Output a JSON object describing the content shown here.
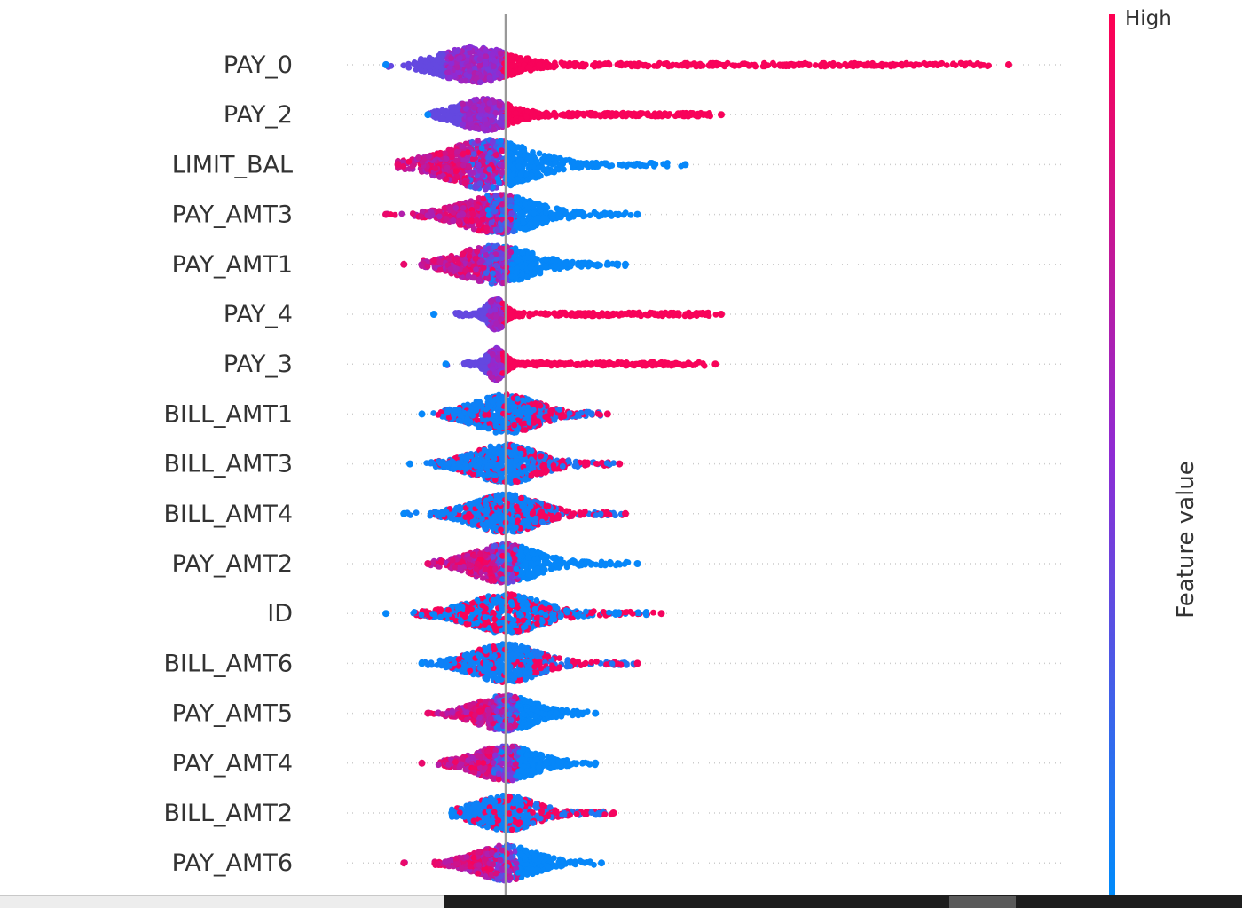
{
  "chart_data": {
    "type": "scatter",
    "subtype": "beeswarm",
    "title": "",
    "xlabel": "",
    "ylabel": "",
    "xlim": [
      -1.2,
      4.5
    ],
    "zero_line": 0,
    "features": [
      {
        "name": "PAY_0",
        "min": -1.0,
        "max": 4.2,
        "center": -0.25,
        "spread": 0.25,
        "width": 18,
        "count": 900,
        "color_mode": "pos_high"
      },
      {
        "name": "PAY_2",
        "min": -0.65,
        "max": 1.8,
        "center": -0.18,
        "spread": 0.18,
        "width": 16,
        "count": 700,
        "color_mode": "pos_high"
      },
      {
        "name": "LIMIT_BAL",
        "min": -0.9,
        "max": 1.5,
        "center": -0.15,
        "spread": 0.3,
        "width": 26,
        "count": 900,
        "color_mode": "neg_high"
      },
      {
        "name": "PAY_AMT3",
        "min": -1.0,
        "max": 1.1,
        "center": -0.05,
        "spread": 0.25,
        "width": 20,
        "count": 700,
        "color_mode": "neg_high"
      },
      {
        "name": "PAY_AMT1",
        "min": -0.85,
        "max": 1.0,
        "center": -0.08,
        "spread": 0.25,
        "width": 20,
        "count": 700,
        "color_mode": "neg_high"
      },
      {
        "name": "PAY_4",
        "min": -0.6,
        "max": 1.8,
        "center": -0.08,
        "spread": 0.06,
        "width": 16,
        "count": 600,
        "color_mode": "pos_high"
      },
      {
        "name": "PAY_3",
        "min": -0.5,
        "max": 1.75,
        "center": -0.08,
        "spread": 0.06,
        "width": 16,
        "count": 600,
        "color_mode": "pos_high"
      },
      {
        "name": "BILL_AMT1",
        "min": -0.7,
        "max": 0.85,
        "center": 0.0,
        "spread": 0.22,
        "width": 20,
        "count": 650,
        "color_mode": "pos_high_mild"
      },
      {
        "name": "BILL_AMT3",
        "min": -0.8,
        "max": 0.95,
        "center": 0.0,
        "spread": 0.22,
        "width": 20,
        "count": 650,
        "color_mode": "pos_high_mild"
      },
      {
        "name": "BILL_AMT4",
        "min": -0.85,
        "max": 1.0,
        "center": 0.0,
        "spread": 0.22,
        "width": 20,
        "count": 650,
        "color_mode": "pos_high_mild"
      },
      {
        "name": "PAY_AMT2",
        "min": -0.65,
        "max": 1.1,
        "center": 0.0,
        "spread": 0.22,
        "width": 20,
        "count": 650,
        "color_mode": "neg_high"
      },
      {
        "name": "ID",
        "min": -1.0,
        "max": 1.3,
        "center": 0.0,
        "spread": 0.25,
        "width": 20,
        "count": 700,
        "color_mode": "mixed"
      },
      {
        "name": "BILL_AMT6",
        "min": -0.7,
        "max": 1.1,
        "center": 0.0,
        "spread": 0.22,
        "width": 20,
        "count": 650,
        "color_mode": "pos_high_mild"
      },
      {
        "name": "PAY_AMT5",
        "min": -0.65,
        "max": 0.75,
        "center": 0.0,
        "spread": 0.2,
        "width": 18,
        "count": 600,
        "color_mode": "neg_high"
      },
      {
        "name": "PAY_AMT4",
        "min": -0.7,
        "max": 0.75,
        "center": 0.0,
        "spread": 0.2,
        "width": 18,
        "count": 600,
        "color_mode": "neg_high"
      },
      {
        "name": "BILL_AMT2",
        "min": -0.45,
        "max": 0.9,
        "center": 0.0,
        "spread": 0.2,
        "width": 18,
        "count": 600,
        "color_mode": "pos_high_mild"
      },
      {
        "name": "PAY_AMT6",
        "min": -0.85,
        "max": 0.8,
        "center": 0.0,
        "spread": 0.2,
        "width": 18,
        "count": 600,
        "color_mode": "neg_high"
      }
    ],
    "colorbar": {
      "high_label": "High",
      "title": "Feature value",
      "low_color": "#008bfb",
      "high_color": "#ff0052",
      "mid_color": "#8f2bd4"
    },
    "gridlines": true,
    "legend": "right"
  }
}
